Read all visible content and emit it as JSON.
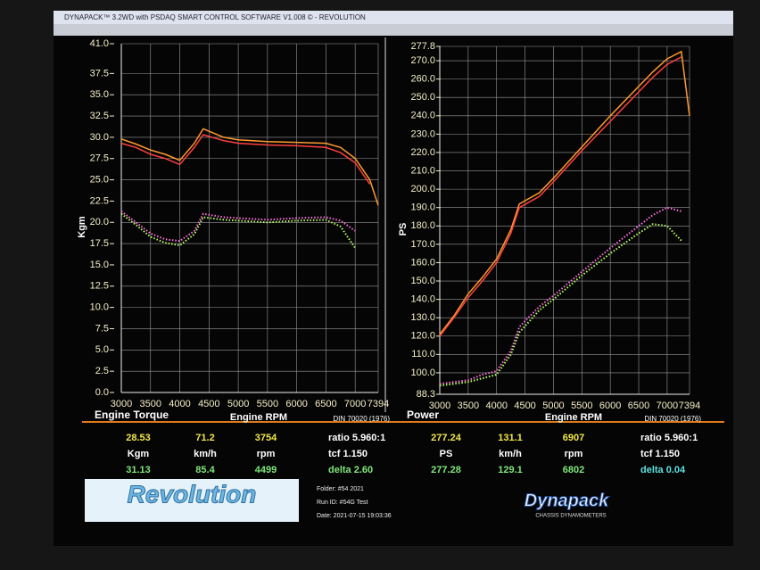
{
  "window_title": "DYNAPACK™ 3.2WD with PSDAQ SMART CONTROL SOFTWARE V1.008 © - REVOLUTION",
  "chart_data": [
    {
      "type": "line",
      "title": "Engine Torque",
      "xlabel": "Engine RPM",
      "ylabel": "Kgm",
      "note": "DIN 70020 (1976)",
      "grid": true,
      "x": [
        3000,
        3250,
        3500,
        3750,
        4000,
        4250,
        4400,
        4750,
        5000,
        5500,
        6000,
        6500,
        6750,
        7000,
        7250,
        7394
      ],
      "xlim": [
        3000,
        7394
      ],
      "xticks": [
        3000,
        3500,
        4000,
        4500,
        5000,
        5500,
        6000,
        6500,
        7000,
        7394
      ],
      "ylim": [
        0,
        41
      ],
      "yticks": [
        {
          "value": 0,
          "label": "0.0"
        },
        2.5,
        {
          "value": 5,
          "label": "5.0"
        },
        7.5,
        {
          "value": 10,
          "label": "10.0"
        },
        12.5,
        {
          "value": 15,
          "label": "15.0"
        },
        17.5,
        {
          "value": 20,
          "label": "20.0"
        },
        22.5,
        {
          "value": 25,
          "label": "25.0"
        },
        27.5,
        {
          "value": 30,
          "label": "30.0"
        },
        32.5,
        {
          "value": 35,
          "label": "35.0"
        },
        37.5,
        {
          "value": 41,
          "label": "41.0"
        }
      ],
      "series": [
        {
          "color": "#ff9a2e",
          "line_style": "solid",
          "values": [
            29.8,
            29.2,
            28.5,
            28.0,
            27.3,
            29.3,
            31.0,
            30.0,
            29.7,
            29.5,
            29.4,
            29.3,
            28.8,
            27.5,
            25.0,
            22.0
          ]
        },
        {
          "color": "#ff4040",
          "line_style": "solid",
          "values": [
            29.3,
            28.8,
            28.0,
            27.5,
            26.8,
            28.8,
            30.3,
            29.6,
            29.3,
            29.1,
            29.0,
            28.8,
            28.2,
            27.0,
            24.5,
            null
          ]
        },
        {
          "color": "#ff70e0",
          "line_style": "dotted",
          "values": [
            21.3,
            20.0,
            18.7,
            18.0,
            17.8,
            19.0,
            21.0,
            20.6,
            20.5,
            20.3,
            20.5,
            20.6,
            20.2,
            19.0,
            null,
            null
          ]
        },
        {
          "color": "#b8ff60",
          "line_style": "dotted",
          "values": [
            21.0,
            19.7,
            18.3,
            17.6,
            17.3,
            18.6,
            20.6,
            20.3,
            20.2,
            20.0,
            20.2,
            20.3,
            19.5,
            17.0,
            null,
            null
          ]
        }
      ]
    },
    {
      "type": "line",
      "title": "Power",
      "xlabel": "Engine RPM",
      "ylabel": "PS",
      "note": "DIN 70020 (1976)",
      "grid": true,
      "x": [
        3000,
        3250,
        3500,
        3750,
        4000,
        4250,
        4400,
        4750,
        5000,
        5500,
        6000,
        6500,
        6750,
        7000,
        7250,
        7394
      ],
      "xlim": [
        3000,
        7394
      ],
      "xticks": [
        3000,
        3500,
        4000,
        4500,
        5000,
        5500,
        6000,
        6500,
        7000,
        7394
      ],
      "ylim": [
        88.3,
        277.8
      ],
      "yticks": [
        88.3,
        {
          "value": 100,
          "label": "100.0"
        },
        {
          "value": 110,
          "label": "110.0"
        },
        {
          "value": 120,
          "label": "120.0"
        },
        {
          "value": 130,
          "label": "130.0"
        },
        {
          "value": 140,
          "label": "140.0"
        },
        {
          "value": 150,
          "label": "150.0"
        },
        {
          "value": 160,
          "label": "160.0"
        },
        {
          "value": 170,
          "label": "170.0"
        },
        {
          "value": 180,
          "label": "180.0"
        },
        {
          "value": 190,
          "label": "190.0"
        },
        {
          "value": 200,
          "label": "200.0"
        },
        {
          "value": 210,
          "label": "210.0"
        },
        {
          "value": 220,
          "label": "220.0"
        },
        {
          "value": 230,
          "label": "230.0"
        },
        {
          "value": 240,
          "label": "240.0"
        },
        {
          "value": 250,
          "label": "250.0"
        },
        {
          "value": 260,
          "label": "260.0"
        },
        {
          "value": 270,
          "label": "270.0"
        },
        277.8
      ],
      "series": [
        {
          "color": "#ff9a2e",
          "line_style": "solid",
          "values": [
            121,
            131,
            143,
            152,
            162,
            178,
            192,
            198,
            206,
            223,
            240,
            256,
            264,
            271,
            275,
            240
          ]
        },
        {
          "color": "#ff4040",
          "line_style": "solid",
          "values": [
            120,
            130,
            141,
            150,
            160,
            176,
            190,
            196,
            204,
            221,
            237,
            253,
            261,
            268,
            272,
            null
          ]
        },
        {
          "color": "#ff70e0",
          "line_style": "dotted",
          "values": [
            94,
            95,
            96,
            99,
            101,
            112,
            125,
            136,
            142,
            155,
            168,
            180,
            186,
            190,
            188,
            null
          ]
        },
        {
          "color": "#b8ff60",
          "line_style": "dotted",
          "values": [
            93,
            94,
            95,
            97,
            99,
            110,
            122,
            134,
            140,
            153,
            165,
            176,
            181,
            180,
            172,
            null
          ]
        }
      ]
    }
  ],
  "readouts": {
    "torque": [
      [
        "28.53",
        "71.2",
        "3754",
        "ratio 5.960:1"
      ],
      [
        "Kgm",
        "km/h",
        "rpm",
        "tcf 1.150"
      ],
      [
        "31.13",
        "85.4",
        "4499",
        "delta 2.60"
      ]
    ],
    "power": [
      [
        "277.24",
        "131.1",
        "6907",
        "ratio 5.960:1"
      ],
      [
        "PS",
        "km/h",
        "rpm",
        "tcf 1.150"
      ],
      [
        "277.28",
        "129.1",
        "6802",
        "delta 0.04"
      ]
    ]
  },
  "footer": {
    "logo": "Revolution",
    "folder": "Folder: #54 2021",
    "run_id": "Run ID: #54G Test",
    "date": "Date: 2021-07-15 19:03:36",
    "brand": "Dynapack",
    "brand_sub": "CHASSIS DYNAMOMETERS"
  }
}
